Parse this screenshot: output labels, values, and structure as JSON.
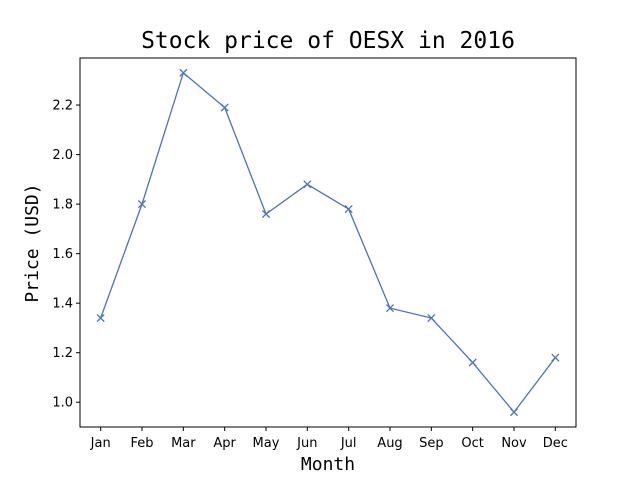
{
  "chart_data": {
    "type": "line",
    "title": "Stock price of OESX in 2016",
    "xlabel": "Month",
    "ylabel": "Price (USD)",
    "categories": [
      "Jan",
      "Feb",
      "Mar",
      "Apr",
      "May",
      "Jun",
      "Jul",
      "Aug",
      "Sep",
      "Oct",
      "Nov",
      "Dec"
    ],
    "series": [
      {
        "values": [
          1.34,
          1.8,
          2.33,
          2.19,
          1.76,
          1.88,
          1.78,
          1.38,
          1.34,
          1.16,
          0.96,
          1.18
        ],
        "color": "#4a72c4",
        "marker": "x"
      }
    ],
    "ylim": [
      0.9,
      2.39
    ],
    "yticks": [
      1.0,
      1.2,
      1.4,
      1.6,
      1.8,
      2.0,
      2.2
    ],
    "ytick_labels": [
      "1.0",
      "1.2",
      "1.4",
      "1.6",
      "1.8",
      "2.0",
      "2.2"
    ],
    "grid": false,
    "legend": "none"
  }
}
